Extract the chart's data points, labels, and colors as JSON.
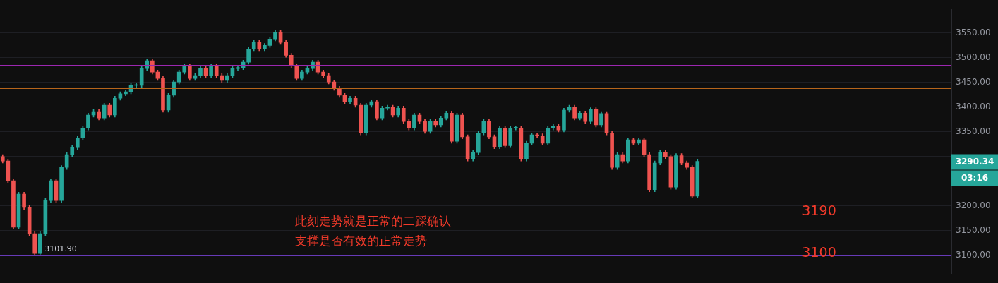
{
  "chart_data": {
    "type": "candlestick",
    "categories": [
      null,
      null,
      null,
      null,
      null,
      null,
      null,
      null,
      null,
      null,
      null,
      null,
      null,
      null,
      null,
      null,
      null,
      null,
      null,
      null,
      null,
      null,
      null,
      null,
      null,
      null,
      null,
      null,
      null,
      null,
      null,
      null,
      null,
      null,
      null,
      null,
      null,
      null,
      null,
      null,
      null,
      null,
      null,
      null,
      null,
      null,
      null,
      null,
      null,
      null,
      null,
      null,
      null,
      null,
      null,
      null,
      null,
      null,
      null,
      null,
      null,
      null,
      null,
      null,
      null,
      null,
      null,
      null,
      null,
      null,
      null,
      null,
      null,
      null,
      null,
      null,
      null,
      null,
      null,
      null,
      null,
      null,
      null,
      null,
      null,
      null,
      null,
      null,
      null,
      null,
      null,
      null,
      null,
      null,
      null,
      null,
      null,
      null,
      null,
      null,
      null,
      null,
      null,
      null,
      null,
      null,
      null,
      null,
      null,
      null,
      null,
      null,
      null,
      null,
      null,
      null,
      null,
      null,
      null,
      null,
      null,
      null,
      null,
      null,
      null,
      null,
      null,
      null,
      null,
      null,
      null,
      null,
      null,
      null,
      null,
      null,
      null,
      null,
      null,
      null,
      null,
      null,
      null,
      null,
      null,
      null,
      null,
      null,
      null,
      null,
      null,
      null,
      null,
      null,
      null,
      null,
      null,
      null,
      null,
      null,
      null,
      null,
      null,
      null,
      null,
      null,
      null,
      null,
      null,
      null,
      null,
      null,
      null,
      null,
      null,
      null,
      null,
      null
    ],
    "ohlc": [
      [
        3300,
        3304,
        3287,
        3291
      ],
      [
        3291,
        3295,
        3247,
        3251
      ],
      [
        3251,
        3255,
        3153,
        3157
      ],
      [
        3157,
        3228,
        3153,
        3224
      ],
      [
        3224,
        3228,
        3193,
        3197
      ],
      [
        3197,
        3201,
        3140,
        3144
      ],
      [
        3144,
        3148,
        3101.9,
        3104
      ],
      [
        3104,
        3148,
        3102,
        3144
      ],
      [
        3144,
        3215,
        3140,
        3211
      ],
      [
        3211,
        3255,
        3207,
        3251
      ],
      [
        3251,
        3255,
        3207,
        3211
      ],
      [
        3211,
        3282,
        3207,
        3278
      ],
      [
        3278,
        3308,
        3274,
        3304
      ],
      [
        3304,
        3322,
        3300,
        3318
      ],
      [
        3318,
        3342,
        3314,
        3338
      ],
      [
        3338,
        3362,
        3334,
        3358
      ],
      [
        3358,
        3388,
        3354,
        3384
      ],
      [
        3384,
        3395,
        3380,
        3391
      ],
      [
        3391,
        3395,
        3374,
        3378
      ],
      [
        3378,
        3408,
        3374,
        3404
      ],
      [
        3404,
        3408,
        3380,
        3384
      ],
      [
        3384,
        3422,
        3380,
        3418
      ],
      [
        3418,
        3431,
        3414,
        3427
      ],
      [
        3427,
        3435,
        3423,
        3431
      ],
      [
        3431,
        3448,
        3427,
        3444
      ],
      [
        3444,
        3448,
        3440,
        3444
      ],
      [
        3444,
        3482,
        3440,
        3478
      ],
      [
        3478,
        3498,
        3474,
        3494
      ],
      [
        3494,
        3498,
        3467,
        3471
      ],
      [
        3471,
        3475,
        3454,
        3458
      ],
      [
        3458,
        3462,
        3390,
        3394
      ],
      [
        3394,
        3428,
        3390,
        3424
      ],
      [
        3424,
        3455,
        3420,
        3451
      ],
      [
        3451,
        3475,
        3447,
        3471
      ],
      [
        3471,
        3488,
        3467,
        3484
      ],
      [
        3484,
        3488,
        3454,
        3458
      ],
      [
        3458,
        3468,
        3454,
        3464
      ],
      [
        3464,
        3482,
        3460,
        3478
      ],
      [
        3478,
        3482,
        3460,
        3464
      ],
      [
        3464,
        3488,
        3460,
        3484
      ],
      [
        3484,
        3488,
        3460,
        3464
      ],
      [
        3464,
        3468,
        3450,
        3454
      ],
      [
        3454,
        3468,
        3450,
        3464
      ],
      [
        3464,
        3482,
        3460,
        3478
      ],
      [
        3478,
        3484,
        3474,
        3480
      ],
      [
        3480,
        3495,
        3476,
        3491
      ],
      [
        3491,
        3522,
        3487,
        3518
      ],
      [
        3518,
        3535,
        3514,
        3531
      ],
      [
        3531,
        3535,
        3514,
        3518
      ],
      [
        3518,
        3529,
        3514,
        3525
      ],
      [
        3525,
        3542,
        3521,
        3538
      ],
      [
        3538,
        3555,
        3534,
        3551
      ],
      [
        3551,
        3555,
        3527,
        3531
      ],
      [
        3531,
        3535,
        3501,
        3505
      ],
      [
        3505,
        3509,
        3480,
        3484
      ],
      [
        3484,
        3488,
        3454,
        3458
      ],
      [
        3458,
        3475,
        3454,
        3471
      ],
      [
        3471,
        3482,
        3467,
        3478
      ],
      [
        3478,
        3495,
        3474,
        3491
      ],
      [
        3491,
        3495,
        3467,
        3471
      ],
      [
        3471,
        3475,
        3460,
        3464
      ],
      [
        3464,
        3468,
        3447,
        3451
      ],
      [
        3451,
        3455,
        3434,
        3438
      ],
      [
        3438,
        3442,
        3420,
        3424
      ],
      [
        3424,
        3428,
        3407,
        3411
      ],
      [
        3411,
        3422,
        3407,
        3418
      ],
      [
        3418,
        3422,
        3400,
        3404
      ],
      [
        3404,
        3408,
        3344,
        3348
      ],
      [
        3348,
        3408,
        3344,
        3404
      ],
      [
        3404,
        3415,
        3400,
        3411
      ],
      [
        3411,
        3415,
        3374,
        3378
      ],
      [
        3378,
        3402,
        3374,
        3398
      ],
      [
        3398,
        3404,
        3394,
        3400
      ],
      [
        3400,
        3404,
        3380,
        3384
      ],
      [
        3384,
        3402,
        3380,
        3398
      ],
      [
        3398,
        3402,
        3367,
        3371
      ],
      [
        3371,
        3375,
        3354,
        3358
      ],
      [
        3358,
        3388,
        3354,
        3384
      ],
      [
        3384,
        3388,
        3367,
        3371
      ],
      [
        3371,
        3375,
        3347,
        3351
      ],
      [
        3351,
        3375,
        3347,
        3371
      ],
      [
        3371,
        3375,
        3360,
        3364
      ],
      [
        3364,
        3382,
        3360,
        3378
      ],
      [
        3378,
        3392,
        3374,
        3388
      ],
      [
        3388,
        3392,
        3327,
        3331
      ],
      [
        3331,
        3388,
        3327,
        3384
      ],
      [
        3384,
        3388,
        3336,
        3340
      ],
      [
        3340,
        3344,
        3291,
        3295
      ],
      [
        3295,
        3312,
        3291,
        3308
      ],
      [
        3308,
        3352,
        3304,
        3348
      ],
      [
        3348,
        3375,
        3344,
        3371
      ],
      [
        3371,
        3375,
        3336,
        3340
      ],
      [
        3340,
        3344,
        3316,
        3320
      ],
      [
        3320,
        3362,
        3316,
        3358
      ],
      [
        3358,
        3362,
        3318,
        3322
      ],
      [
        3322,
        3362,
        3318,
        3358
      ],
      [
        3358,
        3362,
        3354,
        3358
      ],
      [
        3358,
        3362,
        3291,
        3295
      ],
      [
        3295,
        3331,
        3291,
        3327
      ],
      [
        3327,
        3348,
        3323,
        3344
      ],
      [
        3344,
        3348,
        3338,
        3342
      ],
      [
        3342,
        3346,
        3323,
        3327
      ],
      [
        3327,
        3362,
        3323,
        3358
      ],
      [
        3358,
        3366,
        3354,
        3362
      ],
      [
        3362,
        3366,
        3350,
        3354
      ],
      [
        3354,
        3398,
        3350,
        3394
      ],
      [
        3394,
        3404,
        3390,
        3400
      ],
      [
        3400,
        3404,
        3374,
        3378
      ],
      [
        3378,
        3392,
        3374,
        3388
      ],
      [
        3388,
        3392,
        3367,
        3371
      ],
      [
        3371,
        3399,
        3367,
        3395
      ],
      [
        3395,
        3399,
        3360,
        3364
      ],
      [
        3364,
        3391,
        3360,
        3387
      ],
      [
        3387,
        3391,
        3344,
        3348
      ],
      [
        3348,
        3352,
        3274,
        3278
      ],
      [
        3278,
        3308,
        3274,
        3304
      ],
      [
        3304,
        3308,
        3287,
        3291
      ],
      [
        3291,
        3338,
        3287,
        3334
      ],
      [
        3334,
        3338,
        3323,
        3327
      ],
      [
        3327,
        3338,
        3323,
        3334
      ],
      [
        3334,
        3338,
        3300,
        3304
      ],
      [
        3304,
        3308,
        3229,
        3233
      ],
      [
        3233,
        3291,
        3229,
        3287
      ],
      [
        3287,
        3312,
        3283,
        3308
      ],
      [
        3308,
        3312,
        3296,
        3300
      ],
      [
        3300,
        3304,
        3234,
        3238
      ],
      [
        3238,
        3306,
        3234,
        3302
      ],
      [
        3302,
        3306,
        3283,
        3287
      ],
      [
        3287,
        3291,
        3274,
        3278
      ],
      [
        3278,
        3282,
        3216,
        3220
      ],
      [
        3220,
        3294,
        3216,
        3290.34
      ],
      null,
      null,
      null,
      null,
      null,
      null,
      null,
      null,
      null,
      null,
      null,
      null,
      null,
      null,
      null,
      null,
      null,
      null,
      null,
      null,
      null,
      null,
      null,
      null,
      null,
      null,
      null,
      null,
      null,
      null,
      null,
      null,
      null,
      null,
      null,
      null,
      null,
      null,
      null,
      null,
      null,
      null,
      null,
      null,
      null,
      null,
      null
    ],
    "colors": [
      "#ef5350",
      "#ef5350",
      "#ef5350",
      "#26a69a",
      "#ef5350",
      "#ef5350",
      "#ef5350",
      "#26a69a",
      "#26a69a",
      "#26a69a",
      "#ef5350",
      "#26a69a",
      "#26a69a",
      "#26a69a",
      "#26a69a",
      "#26a69a",
      "#26a69a",
      "#26a69a",
      "#ef5350",
      "#26a69a",
      "#ef5350",
      "#26a69a",
      "#26a69a",
      "#26a69a",
      "#26a69a",
      "#26a69a",
      "#26a69a",
      "#26a69a",
      "#ef5350",
      "#ef5350",
      "#ef5350",
      "#26a69a",
      "#26a69a",
      "#26a69a",
      "#26a69a",
      "#ef5350",
      "#26a69a",
      "#26a69a",
      "#ef5350",
      "#26a69a",
      "#ef5350",
      "#ef5350",
      "#26a69a",
      "#26a69a",
      "#26a69a",
      "#26a69a",
      "#26a69a",
      "#26a69a",
      "#ef5350",
      "#26a69a",
      "#26a69a",
      "#26a69a",
      "#ef5350",
      "#ef5350",
      "#ef5350",
      "#ef5350",
      "#26a69a",
      "#26a69a",
      "#26a69a",
      "#ef5350",
      "#ef5350",
      "#ef5350",
      "#ef5350",
      "#ef5350",
      "#ef5350",
      "#26a69a",
      "#ef5350",
      "#ef5350",
      "#26a69a",
      "#26a69a",
      "#ef5350",
      "#26a69a",
      "#26a69a",
      "#ef5350",
      "#26a69a",
      "#ef5350",
      "#ef5350",
      "#26a69a",
      "#ef5350",
      "#ef5350",
      "#26a69a",
      "#ef5350",
      "#26a69a",
      "#26a69a",
      "#ef5350",
      "#26a69a",
      "#ef5350",
      "#ef5350",
      "#26a69a",
      "#26a69a",
      "#26a69a",
      "#ef5350",
      "#ef5350",
      "#26a69a",
      "#ef5350",
      "#26a69a",
      "#26a69a",
      "#ef5350",
      "#26a69a",
      "#26a69a",
      "#ef5350",
      "#ef5350",
      "#26a69a",
      "#26a69a",
      "#ef5350",
      "#26a69a",
      "#26a69a",
      "#ef5350",
      "#26a69a",
      "#ef5350",
      "#26a69a",
      "#ef5350",
      "#26a69a",
      "#ef5350",
      "#ef5350",
      "#26a69a",
      "#ef5350",
      "#26a69a",
      "#ef5350",
      "#26a69a",
      "#ef5350",
      "#ef5350",
      "#26a69a",
      "#26a69a",
      "#ef5350",
      "#ef5350",
      "#26a69a",
      "#ef5350",
      "#ef5350",
      "#ef5350",
      "#26a69a",
      null,
      null,
      null,
      null,
      null,
      null,
      null,
      null,
      null,
      null,
      null,
      null,
      null,
      null,
      null,
      null,
      null,
      null,
      null,
      null,
      null,
      null,
      null,
      null,
      null,
      null,
      null,
      null,
      null,
      null,
      null,
      null,
      null,
      null,
      null,
      null,
      null,
      null,
      null,
      null,
      null,
      null,
      null,
      null,
      null,
      null,
      null
    ],
    "ylim": [
      3063,
      3598
    ],
    "yticks": [
      {
        "value": 3100,
        "label": "3100.00"
      },
      {
        "value": 3150,
        "label": "3150.00"
      },
      {
        "value": 3200,
        "label": "3200.00"
      },
      {
        "value": 3250,
        "label": null
      },
      {
        "value": 3300,
        "label": null
      },
      {
        "value": 3350,
        "label": "3350.00"
      },
      {
        "value": 3400,
        "label": "3400.00"
      },
      {
        "value": 3450,
        "label": "3450.00"
      },
      {
        "value": 3500,
        "label": "3500.00"
      },
      {
        "value": 3550,
        "label": "3550.00"
      }
    ],
    "tick_labels": "y",
    "grid": "y",
    "legend": false,
    "ref_lines": [
      {
        "axis": "y",
        "value": 3486,
        "color": "#9c27b0"
      },
      {
        "axis": "y",
        "value": 3439,
        "color": "#b8651b"
      },
      {
        "axis": "y",
        "value": 3339,
        "color": "#9c27b0"
      },
      {
        "axis": "y",
        "value": 3100,
        "color": "#673ab7"
      },
      {
        "axis": "y",
        "value": 3290.34,
        "label": "3290.34",
        "color": "#26a69a",
        "line_style": "dashed"
      }
    ],
    "annotations": [
      {
        "text": "3101.90",
        "y": 3101.9
      },
      "03:16",
      "3190",
      "3100",
      "此刻走势就是正常的二踩确认",
      "支撑是否有效的正常走势"
    ]
  }
}
